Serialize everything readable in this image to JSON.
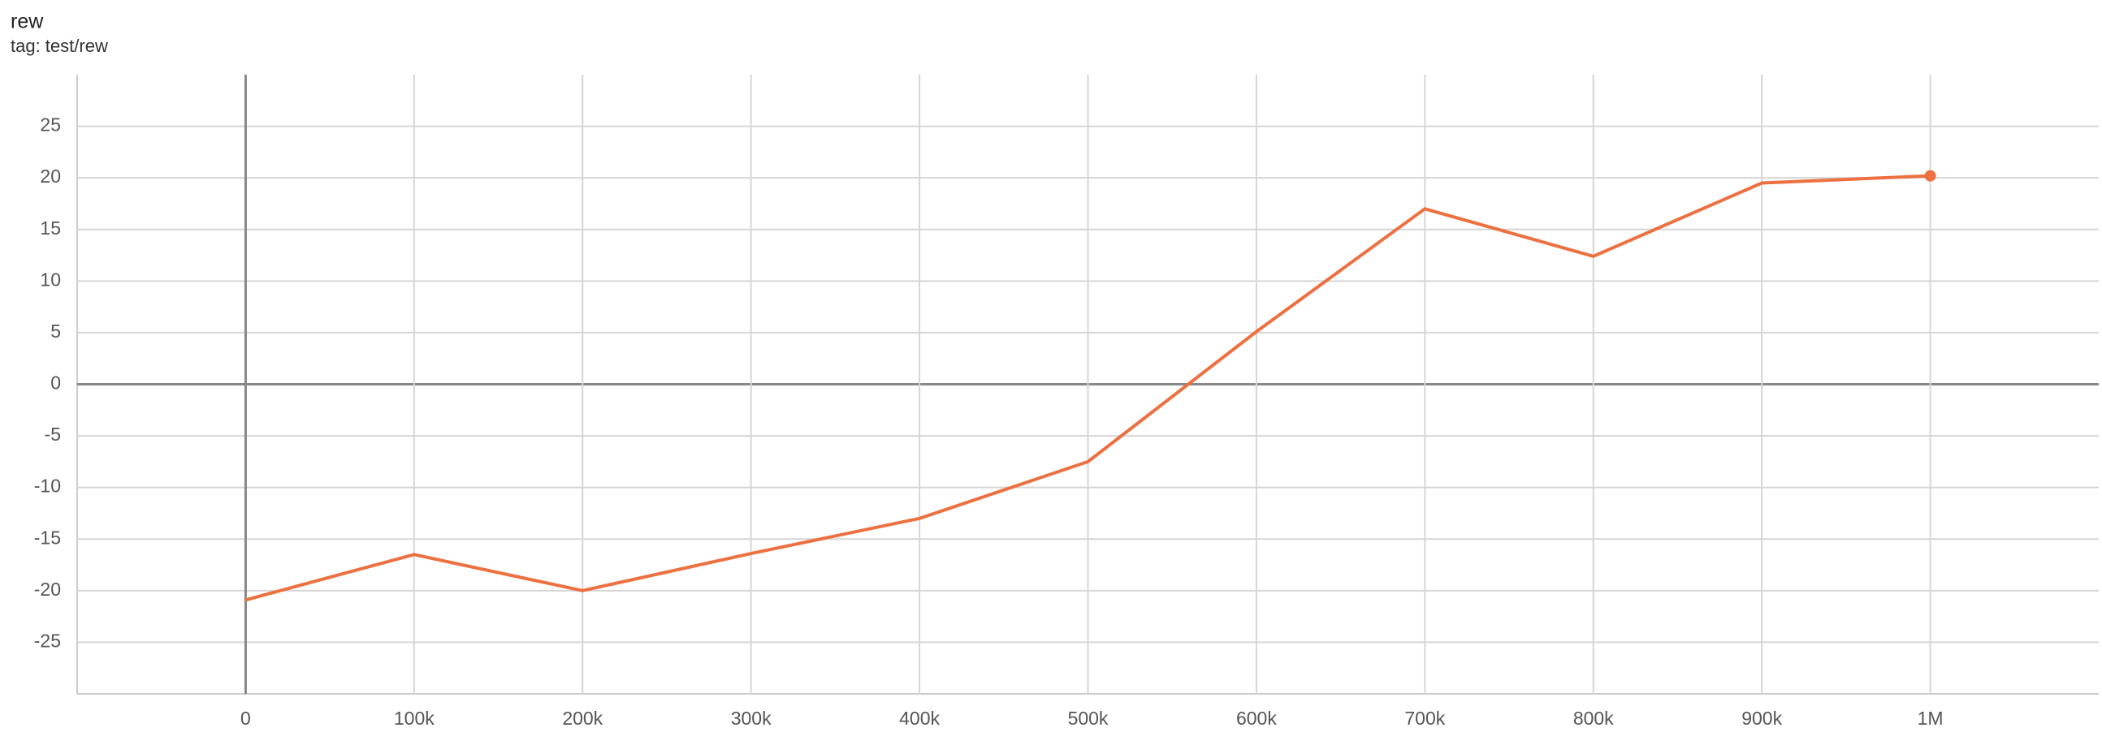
{
  "chart_data": {
    "type": "line",
    "title": "rew",
    "subtitle": "tag: test/rew",
    "x": [
      0,
      100000,
      200000,
      300000,
      400000,
      500000,
      600000,
      700000,
      800000,
      900000,
      1000000
    ],
    "values": [
      -20.9,
      -16.5,
      -20.0,
      -16.4,
      -13.0,
      -7.5,
      5.1,
      17.0,
      12.4,
      19.5,
      20.2
    ],
    "color": "#ec7040",
    "xlim": [
      -100000,
      1100000
    ],
    "xticks": [
      0,
      {
        "value": 100000,
        "label": "100k"
      },
      {
        "value": 200000,
        "label": "200k"
      },
      {
        "value": 300000,
        "label": "300k"
      },
      {
        "value": 400000,
        "label": "400k"
      },
      {
        "value": 500000,
        "label": "500k"
      },
      {
        "value": 600000,
        "label": "600k"
      },
      {
        "value": 700000,
        "label": "700k"
      },
      {
        "value": 800000,
        "label": "800k"
      },
      {
        "value": 900000,
        "label": "900k"
      },
      {
        "value": 1000000,
        "label": "1M"
      }
    ],
    "ylim": [
      -30,
      30
    ],
    "yticks": [
      -25,
      -20,
      -15,
      -10,
      -5,
      0,
      5,
      10,
      15,
      20,
      25
    ],
    "grid": true
  }
}
